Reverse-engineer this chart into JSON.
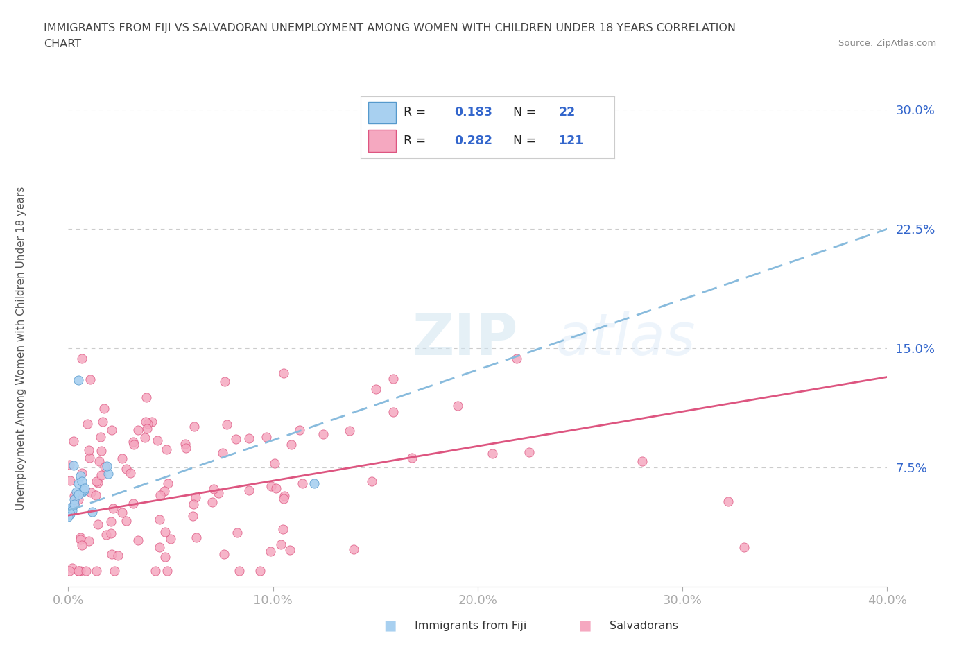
{
  "title_line1": "IMMIGRANTS FROM FIJI VS SALVADORAN UNEMPLOYMENT AMONG WOMEN WITH CHILDREN UNDER 18 YEARS CORRELATION",
  "title_line2": "CHART",
  "source_text": "Source: ZipAtlas.com",
  "ylabel": "Unemployment Among Women with Children Under 18 years",
  "xlim": [
    0.0,
    0.4
  ],
  "ylim": [
    0.0,
    0.3
  ],
  "yticks": [
    0.075,
    0.15,
    0.225,
    0.3
  ],
  "ytick_labels": [
    "7.5%",
    "15.0%",
    "22.5%",
    "30.0%"
  ],
  "xticks": [
    0.0,
    0.1,
    0.2,
    0.3,
    0.4
  ],
  "xtick_labels": [
    "0.0%",
    "10.0%",
    "20.0%",
    "30.0%",
    "40.0%"
  ],
  "fiji_color": "#a8d0f0",
  "fiji_edge_color": "#5599cc",
  "salvador_color": "#f5a8c0",
  "salvador_edge_color": "#dd5580",
  "fiji_trend_color": "#88bbdd",
  "salvador_trend_color": "#dd5580",
  "R_fiji": 0.183,
  "N_fiji": 22,
  "R_salvador": 0.282,
  "N_salvador": 121,
  "watermark_text": "ZIP",
  "watermark_text2": "atlas",
  "background_color": "#ffffff",
  "axis_color": "#3366cc",
  "title_color": "#444444",
  "legend_text_color": "#333333",
  "fiji_trend_start_y": 0.048,
  "fiji_trend_end_y": 0.225,
  "sal_trend_start_y": 0.045,
  "sal_trend_end_y": 0.132
}
